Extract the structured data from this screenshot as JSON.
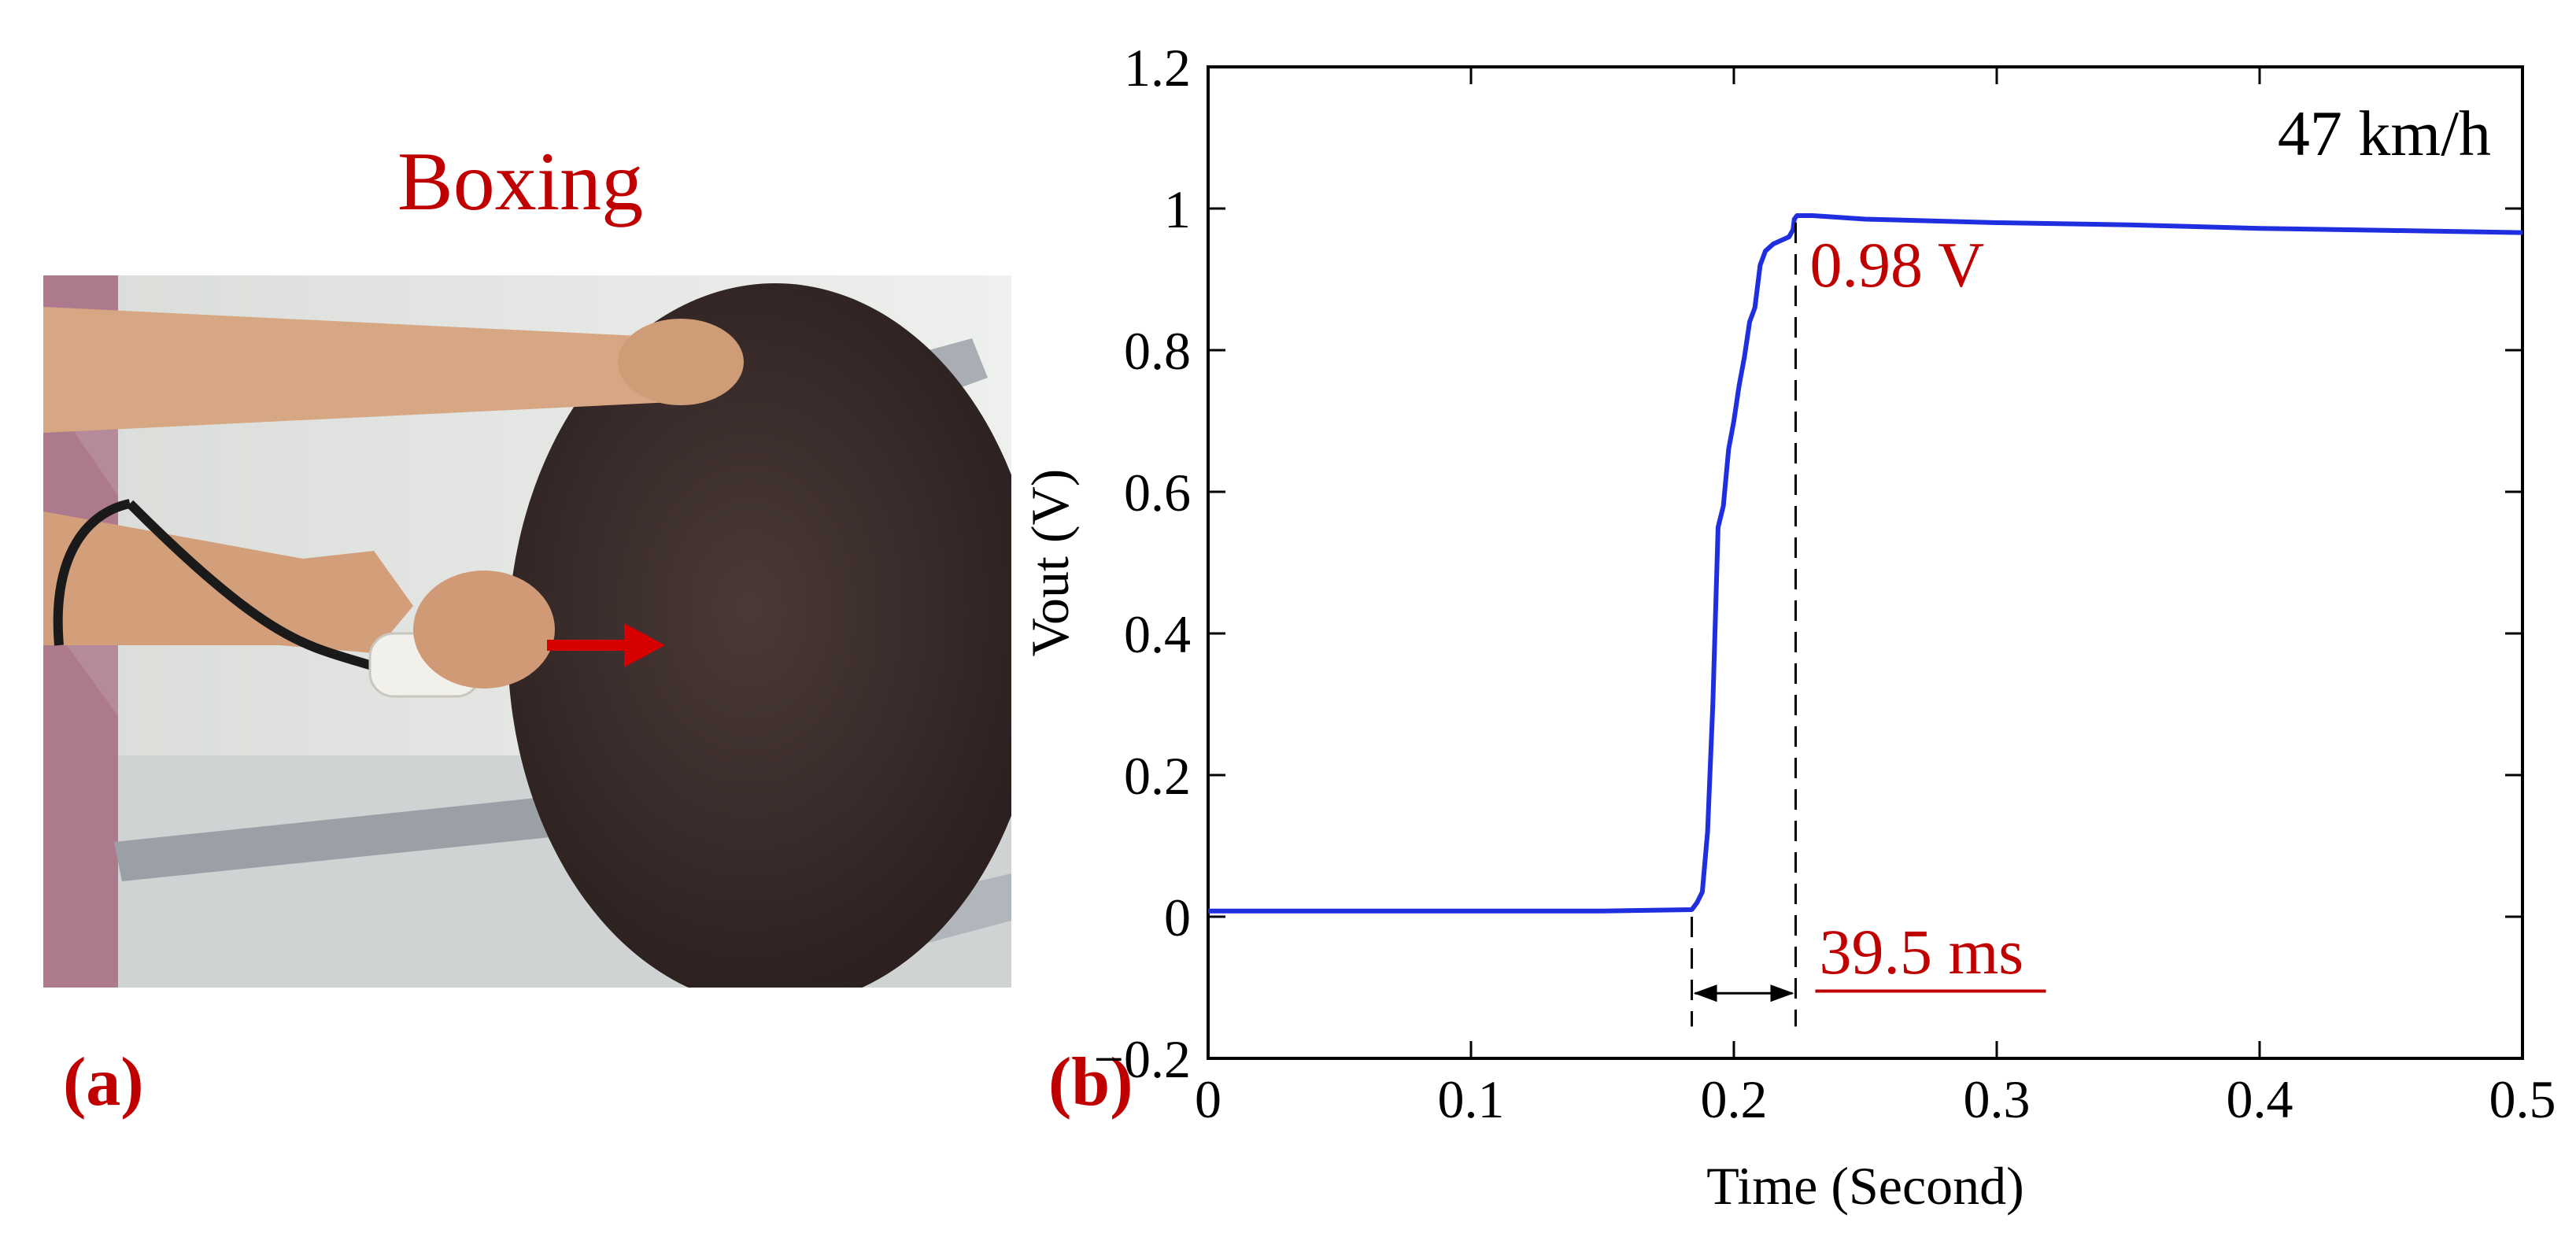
{
  "panels": {
    "a": {
      "label": "(a)",
      "title": "Boxing"
    },
    "b": {
      "label": "(b)"
    }
  },
  "colors": {
    "label_red": "#c00000",
    "series_blue": "#1f2fe0",
    "disc": "#3a2c2a"
  },
  "chart_data": {
    "type": "line",
    "xlabel": "Time (Second)",
    "ylabel": "Vout (V)",
    "xlim": [
      0,
      0.5
    ],
    "ylim": [
      -0.2,
      1.2
    ],
    "xticks": [
      0,
      0.1,
      0.2,
      0.3,
      0.4,
      0.5
    ],
    "xtick_labels": [
      "0",
      "0.1",
      "0.2",
      "0.3",
      "0.4",
      "0.5"
    ],
    "yticks": [
      -0.2,
      0,
      0.2,
      0.4,
      0.6,
      0.8,
      1.0,
      1.2
    ],
    "ytick_labels": [
      "−0.2",
      "0",
      "0.2",
      "0.4",
      "0.6",
      "0.8",
      "1",
      "1.2"
    ],
    "grid": false,
    "series": [
      {
        "color": "#1f2fe0",
        "x": [
          0,
          0.05,
          0.1,
          0.15,
          0.184,
          0.186,
          0.188,
          0.19,
          0.192,
          0.194,
          0.196,
          0.198,
          0.2,
          0.202,
          0.204,
          0.206,
          0.208,
          0.21,
          0.212,
          0.215,
          0.218,
          0.221,
          0.2225,
          0.223,
          0.224,
          0.23,
          0.25,
          0.3,
          0.35,
          0.4,
          0.45,
          0.5
        ],
        "y": [
          0.008,
          0.008,
          0.008,
          0.008,
          0.01,
          0.02,
          0.035,
          0.12,
          0.3,
          0.55,
          0.58,
          0.66,
          0.7,
          0.75,
          0.79,
          0.84,
          0.86,
          0.92,
          0.94,
          0.95,
          0.955,
          0.96,
          0.97,
          0.985,
          0.99,
          0.99,
          0.985,
          0.98,
          0.977,
          0.972,
          0.969,
          0.966
        ]
      }
    ],
    "annotations": {
      "speed": "47 km/h",
      "peak": "0.98 V",
      "duration": "39.5 ms",
      "t_start": 0.184,
      "t_end": 0.2235
    }
  }
}
